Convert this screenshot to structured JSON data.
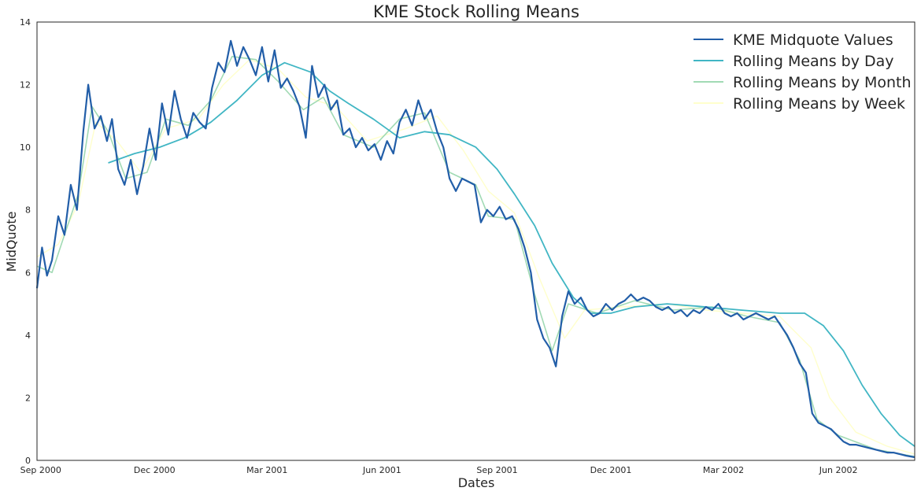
{
  "chart_data": {
    "type": "line",
    "title": "KME Stock Rolling Means",
    "xlabel": "Dates",
    "ylabel": "MidQuote",
    "xlim": [
      "2000-08-29",
      "2002-08-01"
    ],
    "ylim": [
      0,
      14
    ],
    "grid": false,
    "legend_position": "top-right",
    "x_ticks": [
      {
        "date": "2000-09-01",
        "label": "Sep 2000"
      },
      {
        "date": "2000-12-01",
        "label": "Dec 2000"
      },
      {
        "date": "2001-03-01",
        "label": "Mar 2001"
      },
      {
        "date": "2001-06-01",
        "label": "Jun 2001"
      },
      {
        "date": "2001-09-01",
        "label": "Sep 2001"
      },
      {
        "date": "2001-12-01",
        "label": "Dec 2001"
      },
      {
        "date": "2002-03-01",
        "label": "Mar 2002"
      },
      {
        "date": "2002-06-01",
        "label": "Jun 2002"
      }
    ],
    "y_ticks": [
      0,
      2,
      4,
      6,
      8,
      10,
      12,
      14
    ],
    "series": [
      {
        "name": "KME Midquote Values",
        "color": "#225ea8",
        "points": [
          [
            "2000-08-29",
            5.5
          ],
          [
            "2000-09-02",
            6.8
          ],
          [
            "2000-09-06",
            5.9
          ],
          [
            "2000-09-10",
            6.4
          ],
          [
            "2000-09-15",
            7.8
          ],
          [
            "2000-09-20",
            7.2
          ],
          [
            "2000-09-25",
            8.8
          ],
          [
            "2000-09-30",
            8.0
          ],
          [
            "2000-10-05",
            10.5
          ],
          [
            "2000-10-09",
            12.0
          ],
          [
            "2000-10-14",
            10.6
          ],
          [
            "2000-10-19",
            11.0
          ],
          [
            "2000-10-24",
            10.2
          ],
          [
            "2000-10-28",
            10.9
          ],
          [
            "2000-11-02",
            9.3
          ],
          [
            "2000-11-07",
            8.8
          ],
          [
            "2000-11-12",
            9.6
          ],
          [
            "2000-11-17",
            8.5
          ],
          [
            "2000-11-22",
            9.4
          ],
          [
            "2000-11-27",
            10.6
          ],
          [
            "2000-12-02",
            9.6
          ],
          [
            "2000-12-07",
            11.4
          ],
          [
            "2000-12-12",
            10.4
          ],
          [
            "2000-12-17",
            11.8
          ],
          [
            "2000-12-22",
            10.9
          ],
          [
            "2000-12-27",
            10.3
          ],
          [
            "2001-01-01",
            11.1
          ],
          [
            "2001-01-06",
            10.8
          ],
          [
            "2001-01-11",
            10.6
          ],
          [
            "2001-01-16",
            11.9
          ],
          [
            "2001-01-21",
            12.7
          ],
          [
            "2001-01-26",
            12.4
          ],
          [
            "2001-01-31",
            13.4
          ],
          [
            "2001-02-05",
            12.6
          ],
          [
            "2001-02-10",
            13.2
          ],
          [
            "2001-02-15",
            12.8
          ],
          [
            "2001-02-20",
            12.3
          ],
          [
            "2001-02-25",
            13.2
          ],
          [
            "2001-03-02",
            12.1
          ],
          [
            "2001-03-07",
            13.1
          ],
          [
            "2001-03-12",
            11.9
          ],
          [
            "2001-03-17",
            12.2
          ],
          [
            "2001-03-22",
            11.8
          ],
          [
            "2001-03-27",
            11.3
          ],
          [
            "2001-04-01",
            10.3
          ],
          [
            "2001-04-06",
            12.6
          ],
          [
            "2001-04-11",
            11.6
          ],
          [
            "2001-04-16",
            12.0
          ],
          [
            "2001-04-21",
            11.2
          ],
          [
            "2001-04-26",
            11.5
          ],
          [
            "2001-05-01",
            10.4
          ],
          [
            "2001-05-06",
            10.6
          ],
          [
            "2001-05-11",
            10.0
          ],
          [
            "2001-05-16",
            10.3
          ],
          [
            "2001-05-21",
            9.9
          ],
          [
            "2001-05-26",
            10.1
          ],
          [
            "2001-05-31",
            9.6
          ],
          [
            "2001-06-05",
            10.2
          ],
          [
            "2001-06-10",
            9.8
          ],
          [
            "2001-06-15",
            10.8
          ],
          [
            "2001-06-20",
            11.2
          ],
          [
            "2001-06-25",
            10.7
          ],
          [
            "2001-06-30",
            11.5
          ],
          [
            "2001-07-05",
            10.9
          ],
          [
            "2001-07-10",
            11.2
          ],
          [
            "2001-07-15",
            10.5
          ],
          [
            "2001-07-20",
            10.0
          ],
          [
            "2001-07-25",
            9.0
          ],
          [
            "2001-07-30",
            8.6
          ],
          [
            "2001-08-04",
            9.0
          ],
          [
            "2001-08-09",
            8.9
          ],
          [
            "2001-08-14",
            8.8
          ],
          [
            "2001-08-19",
            7.6
          ],
          [
            "2001-08-24",
            8.0
          ],
          [
            "2001-08-29",
            7.8
          ],
          [
            "2001-09-03",
            8.1
          ],
          [
            "2001-09-08",
            7.7
          ],
          [
            "2001-09-13",
            7.8
          ],
          [
            "2001-09-18",
            7.4
          ],
          [
            "2001-09-23",
            6.8
          ],
          [
            "2001-09-28",
            6.0
          ],
          [
            "2001-10-03",
            4.5
          ],
          [
            "2001-10-08",
            3.9
          ],
          [
            "2001-10-13",
            3.6
          ],
          [
            "2001-10-18",
            3.0
          ],
          [
            "2001-10-23",
            4.6
          ],
          [
            "2001-10-28",
            5.4
          ],
          [
            "2001-11-02",
            5.0
          ],
          [
            "2001-11-07",
            5.2
          ],
          [
            "2001-11-12",
            4.8
          ],
          [
            "2001-11-17",
            4.6
          ],
          [
            "2001-11-22",
            4.7
          ],
          [
            "2001-11-27",
            5.0
          ],
          [
            "2001-12-02",
            4.8
          ],
          [
            "2001-12-07",
            5.0
          ],
          [
            "2001-12-12",
            5.1
          ],
          [
            "2001-12-17",
            5.3
          ],
          [
            "2001-12-22",
            5.1
          ],
          [
            "2001-12-27",
            5.2
          ],
          [
            "2002-01-01",
            5.1
          ],
          [
            "2002-01-06",
            4.9
          ],
          [
            "2002-01-11",
            4.8
          ],
          [
            "2002-01-16",
            4.9
          ],
          [
            "2002-01-21",
            4.7
          ],
          [
            "2002-01-26",
            4.8
          ],
          [
            "2002-01-31",
            4.6
          ],
          [
            "2002-02-05",
            4.8
          ],
          [
            "2002-02-10",
            4.7
          ],
          [
            "2002-02-15",
            4.9
          ],
          [
            "2002-02-20",
            4.8
          ],
          [
            "2002-02-25",
            5.0
          ],
          [
            "2002-03-02",
            4.7
          ],
          [
            "2002-03-07",
            4.6
          ],
          [
            "2002-03-12",
            4.7
          ],
          [
            "2002-03-17",
            4.5
          ],
          [
            "2002-03-22",
            4.6
          ],
          [
            "2002-03-27",
            4.7
          ],
          [
            "2002-04-01",
            4.6
          ],
          [
            "2002-04-06",
            4.5
          ],
          [
            "2002-04-11",
            4.6
          ],
          [
            "2002-04-16",
            4.3
          ],
          [
            "2002-04-21",
            4.0
          ],
          [
            "2002-04-26",
            3.6
          ],
          [
            "2002-05-01",
            3.1
          ],
          [
            "2002-05-06",
            2.8
          ],
          [
            "2002-05-11",
            1.5
          ],
          [
            "2002-05-16",
            1.2
          ],
          [
            "2002-05-21",
            1.1
          ],
          [
            "2002-05-26",
            1.0
          ],
          [
            "2002-05-31",
            0.8
          ],
          [
            "2002-06-05",
            0.6
          ],
          [
            "2002-06-10",
            0.5
          ],
          [
            "2002-06-15",
            0.5
          ],
          [
            "2002-06-20",
            0.45
          ],
          [
            "2002-06-25",
            0.4
          ],
          [
            "2002-06-30",
            0.35
          ],
          [
            "2002-07-05",
            0.3
          ],
          [
            "2002-07-10",
            0.25
          ],
          [
            "2002-07-15",
            0.25
          ],
          [
            "2002-07-20",
            0.2
          ],
          [
            "2002-07-25",
            0.15
          ],
          [
            "2002-08-01",
            0.1
          ]
        ]
      },
      {
        "name": "Rolling Means by Day",
        "color": "#41b6c4",
        "points": [
          [
            "2000-10-25",
            9.5
          ],
          [
            "2000-11-15",
            9.8
          ],
          [
            "2000-12-05",
            10.0
          ],
          [
            "2000-12-25",
            10.3
          ],
          [
            "2001-01-15",
            10.8
          ],
          [
            "2001-02-05",
            11.5
          ],
          [
            "2001-02-25",
            12.3
          ],
          [
            "2001-03-15",
            12.7
          ],
          [
            "2001-04-05",
            12.4
          ],
          [
            "2001-04-20",
            11.8
          ],
          [
            "2001-05-05",
            11.4
          ],
          [
            "2001-05-25",
            10.9
          ],
          [
            "2001-06-15",
            10.3
          ],
          [
            "2001-07-05",
            10.5
          ],
          [
            "2001-07-25",
            10.4
          ],
          [
            "2001-08-15",
            10.0
          ],
          [
            "2001-09-01",
            9.3
          ],
          [
            "2001-09-15",
            8.5
          ],
          [
            "2001-10-01",
            7.5
          ],
          [
            "2001-10-15",
            6.3
          ],
          [
            "2001-11-01",
            5.2
          ],
          [
            "2001-11-15",
            4.7
          ],
          [
            "2001-12-01",
            4.7
          ],
          [
            "2001-12-20",
            4.9
          ],
          [
            "2002-01-15",
            5.0
          ],
          [
            "2002-02-15",
            4.9
          ],
          [
            "2002-03-15",
            4.8
          ],
          [
            "2002-04-15",
            4.7
          ],
          [
            "2002-05-05",
            4.7
          ],
          [
            "2002-05-20",
            4.3
          ],
          [
            "2002-06-05",
            3.5
          ],
          [
            "2002-06-20",
            2.4
          ],
          [
            "2002-07-05",
            1.5
          ],
          [
            "2002-07-20",
            0.8
          ],
          [
            "2002-08-01",
            0.45
          ]
        ]
      },
      {
        "name": "Rolling Means by Month",
        "color": "#a1dab4",
        "points": [
          [
            "2000-08-29",
            6.2
          ],
          [
            "2000-09-10",
            6.0
          ],
          [
            "2000-09-20",
            7.2
          ],
          [
            "2000-10-01",
            8.5
          ],
          [
            "2000-10-12",
            11.3
          ],
          [
            "2000-10-25",
            10.5
          ],
          [
            "2000-11-08",
            9.0
          ],
          [
            "2000-11-25",
            9.2
          ],
          [
            "2000-12-10",
            10.9
          ],
          [
            "2000-12-28",
            10.7
          ],
          [
            "2001-01-15",
            11.5
          ],
          [
            "2001-02-01",
            12.9
          ],
          [
            "2001-02-20",
            12.8
          ],
          [
            "2001-03-10",
            12.1
          ],
          [
            "2001-03-30",
            11.2
          ],
          [
            "2001-04-15",
            11.6
          ],
          [
            "2001-05-01",
            10.4
          ],
          [
            "2001-05-25",
            10.0
          ],
          [
            "2001-06-15",
            10.9
          ],
          [
            "2001-07-05",
            11.1
          ],
          [
            "2001-07-25",
            9.2
          ],
          [
            "2001-08-15",
            8.8
          ],
          [
            "2001-08-25",
            7.8
          ],
          [
            "2001-09-15",
            7.7
          ],
          [
            "2001-10-01",
            5.3
          ],
          [
            "2001-10-15",
            3.5
          ],
          [
            "2001-10-28",
            5.0
          ],
          [
            "2001-11-20",
            4.7
          ],
          [
            "2001-12-20",
            5.1
          ],
          [
            "2002-01-20",
            4.8
          ],
          [
            "2002-02-20",
            4.9
          ],
          [
            "2002-03-20",
            4.6
          ],
          [
            "2002-04-15",
            4.4
          ],
          [
            "2002-05-01",
            3.2
          ],
          [
            "2002-05-15",
            1.3
          ],
          [
            "2002-06-01",
            0.8
          ],
          [
            "2002-07-01",
            0.35
          ],
          [
            "2002-08-01",
            0.12
          ]
        ]
      },
      {
        "name": "Rolling Means by Week",
        "color": "#ffffcc",
        "points": [
          [
            "2000-08-29",
            6.5
          ],
          [
            "2000-09-15",
            6.9
          ],
          [
            "2000-10-01",
            8.2
          ],
          [
            "2000-10-15",
            10.8
          ],
          [
            "2000-11-01",
            10.2
          ],
          [
            "2000-11-20",
            9.2
          ],
          [
            "2000-12-10",
            10.6
          ],
          [
            "2001-01-05",
            10.9
          ],
          [
            "2001-01-25",
            12.0
          ],
          [
            "2001-02-15",
            12.8
          ],
          [
            "2001-03-10",
            12.5
          ],
          [
            "2001-04-01",
            11.6
          ],
          [
            "2001-04-25",
            11.3
          ],
          [
            "2001-05-20",
            10.2
          ],
          [
            "2001-06-20",
            10.6
          ],
          [
            "2001-07-15",
            11.0
          ],
          [
            "2001-08-05",
            9.9
          ],
          [
            "2001-08-25",
            8.6
          ],
          [
            "2001-09-15",
            7.9
          ],
          [
            "2001-10-05",
            5.8
          ],
          [
            "2001-10-25",
            3.9
          ],
          [
            "2001-11-10",
            4.8
          ],
          [
            "2001-12-10",
            4.9
          ],
          [
            "2002-01-15",
            5.0
          ],
          [
            "2002-02-15",
            4.8
          ],
          [
            "2002-03-15",
            4.7
          ],
          [
            "2002-04-15",
            4.6
          ],
          [
            "2002-05-10",
            3.6
          ],
          [
            "2002-05-25",
            2.0
          ],
          [
            "2002-06-15",
            0.9
          ],
          [
            "2002-07-10",
            0.45
          ],
          [
            "2002-08-01",
            0.2
          ]
        ]
      }
    ]
  }
}
